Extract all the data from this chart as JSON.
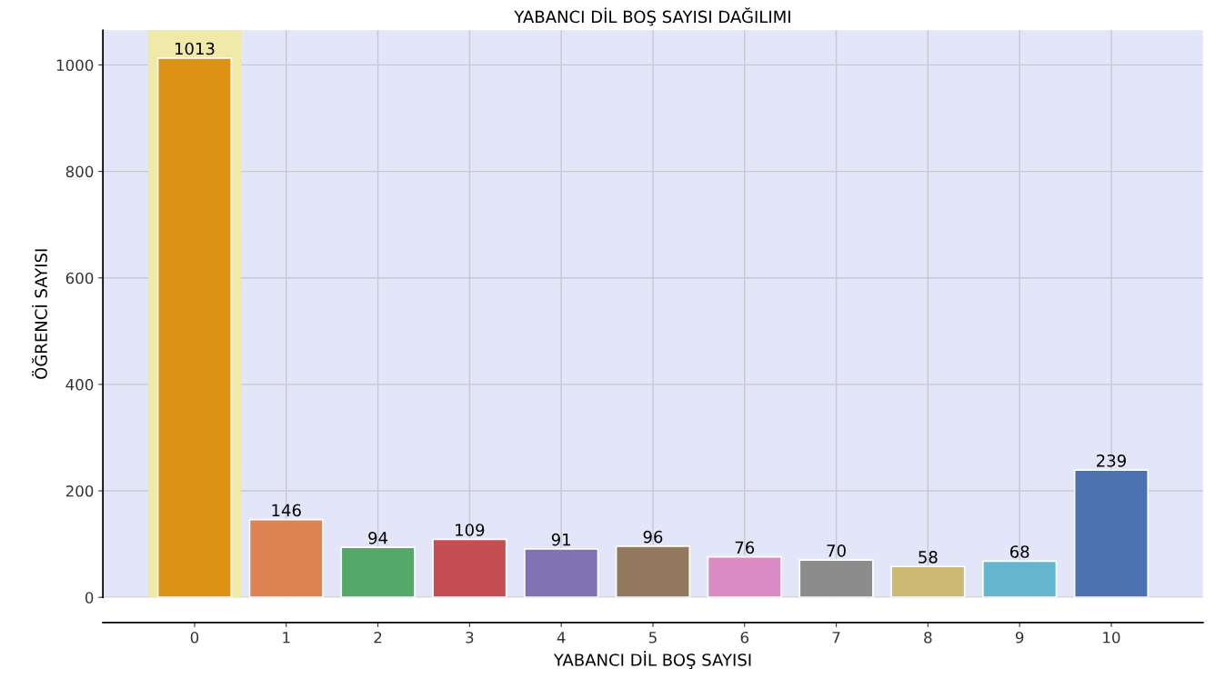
{
  "chart_data": {
    "type": "bar",
    "title": "YABANCI DİL BOŞ SAYISI DAĞILIMI",
    "xlabel": "YABANCI DİL BOŞ SAYISI",
    "ylabel": "ÖĞRENCİ SAYISI",
    "x": [
      0,
      1,
      2,
      3,
      4,
      5,
      6,
      7,
      8,
      9,
      10
    ],
    "values": [
      1013,
      146,
      94,
      109,
      91,
      96,
      76,
      70,
      58,
      68,
      239
    ],
    "colors": [
      "#dd9213",
      "#dd8452",
      "#55a868",
      "#c44e52",
      "#8172b3",
      "#937860",
      "#da8bc3",
      "#8c8c8c",
      "#ccb974",
      "#64b5cd",
      "#4c72b0"
    ],
    "xlim": [
      -1,
      11
    ],
    "xticks": [
      0,
      1,
      2,
      3,
      4,
      5,
      6,
      7,
      8,
      9,
      10
    ],
    "ylim": [
      0,
      1065
    ],
    "yticks": [
      0,
      200,
      400,
      600,
      800,
      1000
    ],
    "bands": [
      {
        "axis": "x",
        "from": -0.5,
        "to": 0.5,
        "color": "#f0eaa8"
      }
    ],
    "data_labels": true,
    "grid": true
  }
}
